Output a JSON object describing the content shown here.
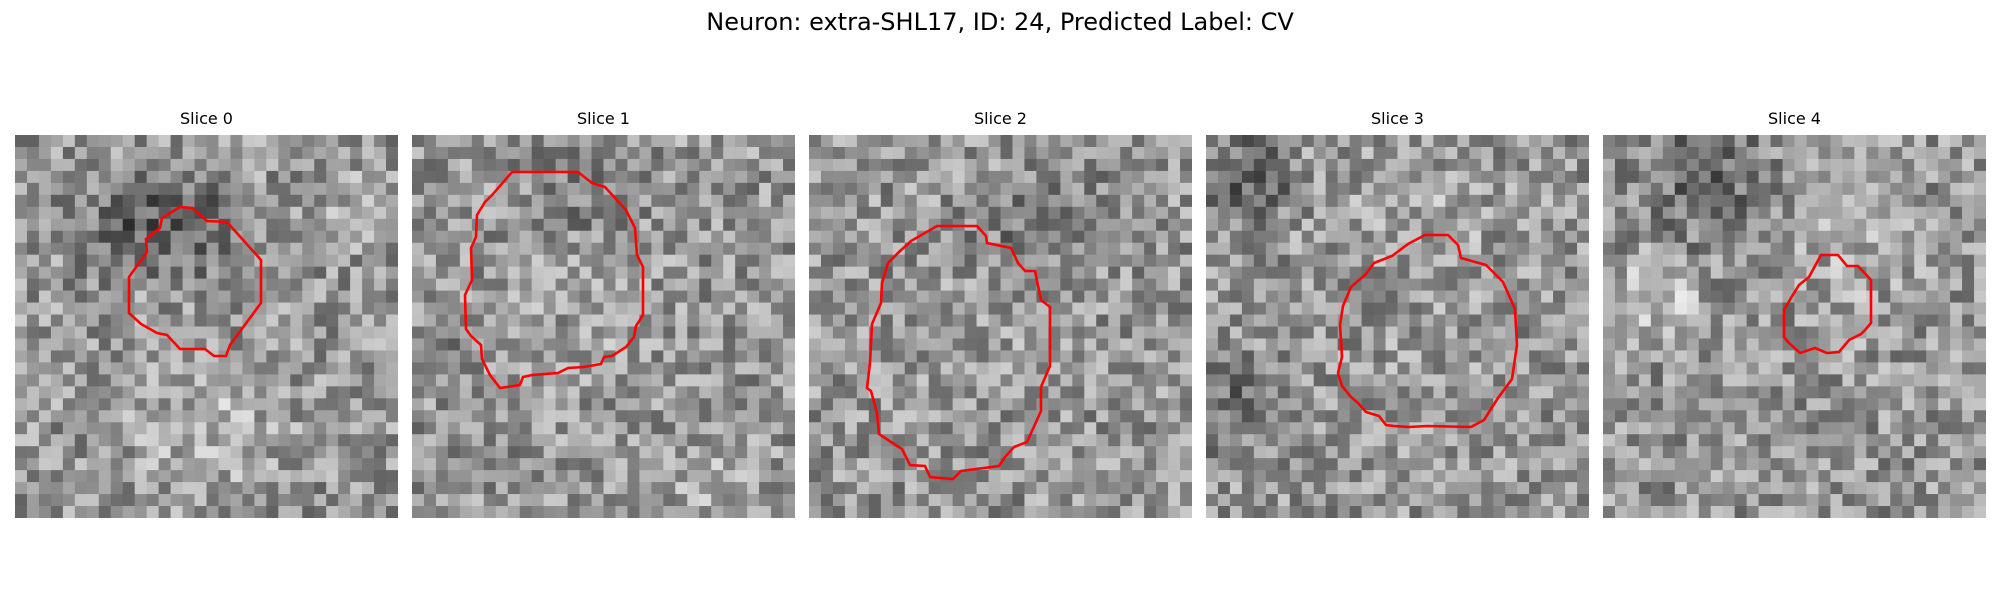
{
  "figure": {
    "title": "Neuron: extra-SHL17, ID: 24, Predicted Label: CV",
    "contour_color": "#ff0000"
  },
  "slices": [
    {
      "title": "Slice 0"
    },
    {
      "title": "Slice 1"
    },
    {
      "title": "Slice 2"
    },
    {
      "title": "Slice 3"
    },
    {
      "title": "Slice 4"
    }
  ]
}
